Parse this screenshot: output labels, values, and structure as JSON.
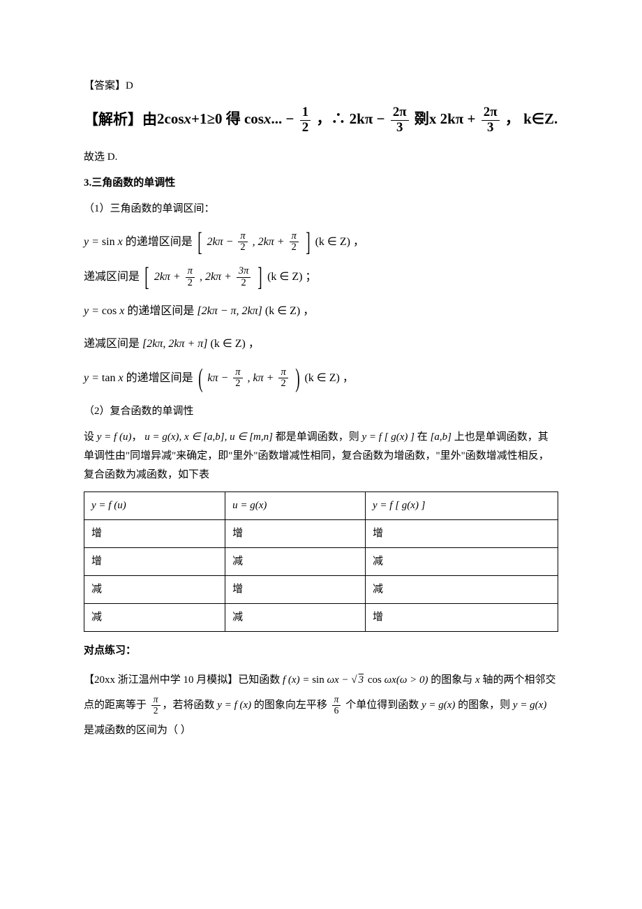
{
  "answer_line": "【答案】D",
  "analysis": {
    "prefix": "【解析】由 ",
    "s1": "2cos",
    "x1": "x",
    "s2": "+1≥0 得 cos",
    "x2": "x",
    "s3": "... −",
    "half_num": "1",
    "half_den": "2",
    "s4": "，∴ 2kπ −",
    "t1_num": "2π",
    "t1_den": "3",
    "mid": " 剟x  2kπ +",
    "t2_num": "2π",
    "t2_den": "3",
    "tail": "， k∈Z."
  },
  "therefore": "故选 D.",
  "section_title": "3.三角函数的单调性",
  "sub1": "（1）三角函数的单调区间：",
  "sin_inc": {
    "pre": "y = ",
    "fn": "sin ",
    "x": "x",
    "txt": " 的递增区间是",
    "a": "2kπ −",
    "p2n": "π",
    "p2d": "2",
    "comma": ", 2kπ +",
    "p3n": "π",
    "p3d": "2",
    "tail": "(k ∈ Z) ，"
  },
  "sin_dec": {
    "pre": "递减区间是",
    "a": "2kπ +",
    "p2n": "π",
    "p2d": "2",
    "comma": ", 2kπ +",
    "p3n": "3π",
    "p3d": "2",
    "tail": "(k ∈ Z) ；"
  },
  "cos_inc": {
    "pre": "y = ",
    "fn": "cos ",
    "x": "x",
    "txt": " 的递增区间是",
    "interval": "[2kπ − π, 2kπ]",
    "tail": "(k ∈ Z) ，"
  },
  "cos_dec": {
    "pre": "递减区间是",
    "interval": "[2kπ, 2kπ + π]",
    "tail": "(k ∈ Z) ，"
  },
  "tan_inc": {
    "pre": "y = ",
    "fn": "tan ",
    "x": "x",
    "txt": " 的递增区间是",
    "a": "kπ −",
    "p2n": "π",
    "p2d": "2",
    "comma": ",  kπ +",
    "p3n": "π",
    "p3d": "2",
    "tail": "(k ∈ Z) ，"
  },
  "sub2": "（2）复合函数的单调性",
  "compound_p": {
    "s1": "设 ",
    "f1": "y = f (u)",
    "s2": "， ",
    "f2": "u = g(x), x ∈ [a,b], u ∈ [m,n]",
    "s3": " 都是单调函数，则 ",
    "f3": "y = f [ g(x) ]",
    "s4": " 在 ",
    "f4": "[a,b]",
    "s5": " 上也是单调函数，其单调性由\"同增异减\"来确定，即\"里外\"函数增减性相同，复合函数为增函数，\"里外\"函数增减性相反，复合函数为减函数，如下表"
  },
  "table": {
    "headers": [
      "y = f (u)",
      "u = g(x)",
      "y = f [ g(x) ]"
    ],
    "rows": [
      [
        "增",
        "增",
        "增"
      ],
      [
        "增",
        "减",
        "减"
      ],
      [
        "减",
        "增",
        "减"
      ],
      [
        "减",
        "减",
        "增"
      ]
    ]
  },
  "practice_title": "对点练习：",
  "practice": {
    "s1": "【20xx 浙江温州中学 10 月模拟】已知函数 ",
    "f1a": "f (x) = ",
    "f1b": "sin ",
    "f1c": "ωx − ",
    "sqrt3": "3",
    "f1d": " cos ",
    "f1e": "ωx(ω > 0)",
    "s2": " 的图象与 ",
    "xaxis": "x",
    "s3": " 轴的两个相邻交点的距离等于 ",
    "pi2n": "π",
    "pi2d": "2",
    "s4": "，若将函数 ",
    "yfx": "y = f (x)",
    "s5": " 的图象向左平移 ",
    "pi6n": "π",
    "pi6d": "6",
    "s6": " 个单位得到函数 ",
    "ygx": "y = g(x)",
    "s7": " 的图象，则 ",
    "ygx2": "y = g(x)",
    "s8": " 是减函数的区间为（   ）"
  }
}
